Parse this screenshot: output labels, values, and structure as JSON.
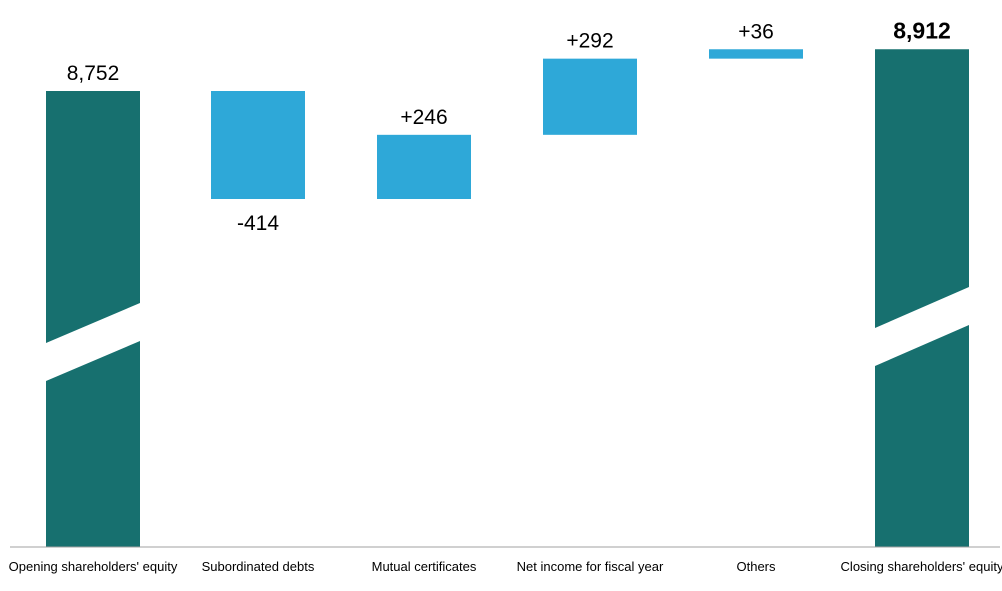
{
  "chart_data": {
    "type": "bar",
    "subtype": "waterfall",
    "categories": [
      "Opening shareholders' equity",
      "Subordinated debts",
      "Mutual certificates",
      "Net income for fiscal year",
      "Others",
      "Closing shareholders' equity"
    ],
    "values": [
      8752,
      -414,
      246,
      292,
      36,
      8912
    ],
    "kinds": [
      "total",
      "delta",
      "delta",
      "delta",
      "delta",
      "total"
    ],
    "value_labels": [
      "8,752",
      "-414",
      "+246",
      "+292",
      "+36",
      "8,912"
    ],
    "bold_labels": [
      false,
      false,
      false,
      false,
      false,
      true
    ],
    "axis_break": true,
    "grid": false,
    "colors": {
      "total": "#17706f",
      "delta": "#2ea8d8",
      "axis": "#a0a0a0"
    }
  }
}
